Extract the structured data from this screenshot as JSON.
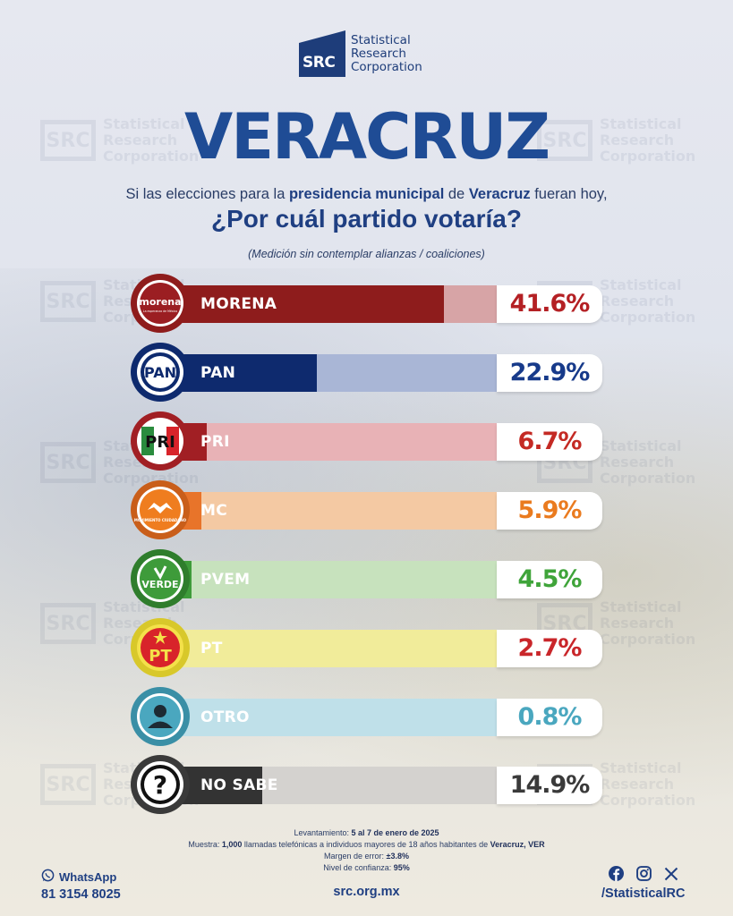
{
  "brand": {
    "logo_mark": "SRC",
    "logo_line1": "Statistical",
    "logo_line2": "Research",
    "logo_line3": "Corporation"
  },
  "header": {
    "title": "VERACRUZ",
    "question_pre": "Si las elecciones para la ",
    "question_bold1": "presidencia municipal",
    "question_mid": " de ",
    "question_bold2": "Veracruz",
    "question_post": " fueran hoy,",
    "question_main": "¿Por cuál partido votaría?",
    "note": "(Medición sin contemplar alianzas / coaliciones)"
  },
  "chart_data": {
    "type": "bar",
    "categories": [
      "MORENA",
      "PAN",
      "PRI",
      "MC",
      "PVEM",
      "PT",
      "OTRO",
      "NO SABE"
    ],
    "values": [
      41.6,
      22.9,
      6.7,
      5.9,
      4.5,
      2.7,
      0.8,
      14.9
    ],
    "value_labels": [
      "41.6%",
      "22.9%",
      "6.7%",
      "5.9%",
      "4.5%",
      "2.7%",
      "0.8%",
      "14.9%"
    ],
    "colors": [
      "#8e1c1c",
      "#0e2a6e",
      "#a11f24",
      "#e8742a",
      "#3e9b3a",
      "#e8dc3a",
      "#4aa7bf",
      "#333333"
    ],
    "track_colors": [
      "#d7a4a6",
      "#a9b6d6",
      "#e8b2b6",
      "#f4c9a3",
      "#c7e2bd",
      "#f1ec9a",
      "#bfe0e9",
      "#d4d2cf"
    ],
    "value_colors": [
      "#b42024",
      "#173a8a",
      "#c42a24",
      "#ea7b1f",
      "#3fa43a",
      "#c9262a",
      "#4aa7bf",
      "#3a3a3a"
    ],
    "xlim": [
      0,
      50
    ]
  },
  "badges": {
    "morena": "morena",
    "morena_sub": "La esperanza de México",
    "pan": "PAN",
    "pri": "PRI",
    "mc_sub": "MOVIMIENTO CIUDADANO",
    "pvem": "VERDE",
    "pt": "PT",
    "nosabe": "?"
  },
  "footer": {
    "l1_label": "Levantamiento: ",
    "l1_value": "5 al 7 de enero de 2025",
    "l2_label": "Muestra: ",
    "l2_bold": "1,000",
    "l2_text": " llamadas telefónicas a individuos mayores de 18 años habitantes de ",
    "l2_place": "Veracruz, VER",
    "l3_label": "Margen de error: ",
    "l3_value": "±3.8%",
    "l4_label": "Nivel de confianza: ",
    "l4_value": "95%",
    "whatsapp_label": "WhatsApp",
    "whatsapp_number": "81 3154 8025",
    "website": "src.org.mx",
    "social_handle": "/StatisticalRC"
  }
}
